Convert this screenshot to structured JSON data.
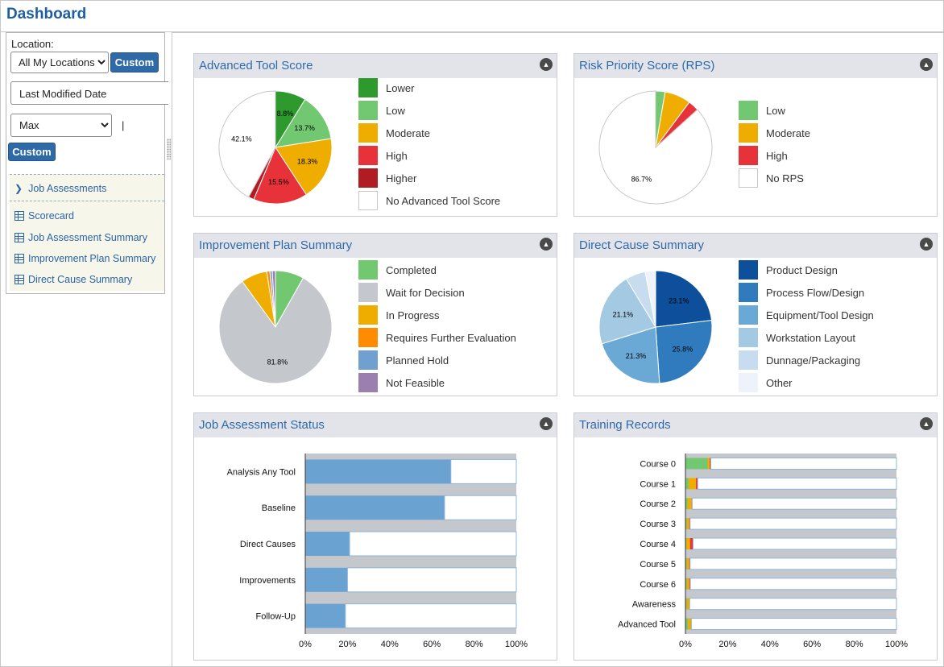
{
  "page": {
    "title": "Dashboard"
  },
  "sidebar": {
    "location_label": "Location:",
    "location_value": "All My Locations",
    "custom_label": "Custom",
    "date_field": "Last Modified Date",
    "range_value": "Max",
    "separator": "|",
    "nav": [
      {
        "label": "Job Assessments",
        "icon": "chevron-right-icon"
      },
      {
        "label": "Scorecard",
        "icon": "grid-icon"
      },
      {
        "label": "Job Assessment Summary",
        "icon": "grid-icon"
      },
      {
        "label": "Improvement Plan Summary",
        "icon": "grid-icon"
      },
      {
        "label": "Direct Cause Summary",
        "icon": "grid-icon"
      }
    ]
  },
  "panels": {
    "advanced_tool_score": {
      "title": "Advanced Tool Score"
    },
    "risk_priority_score": {
      "title": "Risk Priority Score (RPS)"
    },
    "improvement_plan_summary": {
      "title": "Improvement Plan Summary"
    },
    "direct_cause_summary": {
      "title": "Direct Cause Summary"
    },
    "job_assessment_status": {
      "title": "Job Assessment Status"
    },
    "training_records": {
      "title": "Training Records"
    }
  },
  "chart_data": [
    {
      "id": "advanced_tool_score",
      "type": "pie",
      "slices": [
        {
          "name": "Lower",
          "value": 8.8,
          "label": "8.8%",
          "color": "#2e9a2e"
        },
        {
          "name": "Low",
          "value": 13.7,
          "label": "13.7%",
          "color": "#72c771"
        },
        {
          "name": "Moderate",
          "value": 18.3,
          "label": "18.3%",
          "color": "#efad00"
        },
        {
          "name": "High",
          "value": 15.5,
          "label": "15.5%",
          "color": "#e8323a"
        },
        {
          "name": "Higher",
          "value": 1.6,
          "label": "",
          "color": "#b01c22"
        },
        {
          "name": "No Advanced Tool Score",
          "value": 42.1,
          "label": "42.1%",
          "color": "#ffffff"
        }
      ]
    },
    {
      "id": "risk_priority_score",
      "type": "pie",
      "slices": [
        {
          "name": "Low",
          "value": 2.7,
          "label": "",
          "color": "#72c771"
        },
        {
          "name": "Moderate",
          "value": 7.5,
          "label": "",
          "color": "#efad00"
        },
        {
          "name": "High",
          "value": 3.1,
          "label": "",
          "color": "#e8323a"
        },
        {
          "name": "No RPS",
          "value": 86.7,
          "label": "86.7%",
          "color": "#ffffff"
        }
      ]
    },
    {
      "id": "improvement_plan_summary",
      "type": "pie",
      "slices": [
        {
          "name": "Completed",
          "value": 8.2,
          "label": "",
          "color": "#72c771"
        },
        {
          "name": "Wait for Decision",
          "value": 81.8,
          "label": "81.8%",
          "color": "#c4c8cc"
        },
        {
          "name": "In Progress",
          "value": 7.5,
          "label": "",
          "color": "#efad00"
        },
        {
          "name": "Requires Further Evaluation",
          "value": 0.9,
          "label": "",
          "color": "#ff8c00"
        },
        {
          "name": "Planned Hold",
          "value": 0.7,
          "label": "",
          "color": "#6fa0cf"
        },
        {
          "name": "Not Feasible",
          "value": 0.9,
          "label": "",
          "color": "#9a7fb0"
        }
      ]
    },
    {
      "id": "direct_cause_summary",
      "type": "pie",
      "slices": [
        {
          "name": "Product Design",
          "value": 23.1,
          "label": "23.1%",
          "color": "#0d4f9a"
        },
        {
          "name": "Process Flow/Design",
          "value": 25.8,
          "label": "25.8%",
          "color": "#2f7bbd"
        },
        {
          "name": "Equipment/Tool Design",
          "value": 21.3,
          "label": "21.3%",
          "color": "#6aa9d5"
        },
        {
          "name": "Workstation Layout",
          "value": 21.1,
          "label": "21.1%",
          "color": "#a4c9e3"
        },
        {
          "name": "Dunnage/Packaging",
          "value": 5.7,
          "label": "",
          "color": "#c8dcef"
        },
        {
          "name": "Other",
          "value": 3.0,
          "label": "",
          "color": "#eef3fb"
        }
      ]
    },
    {
      "id": "job_assessment_status",
      "type": "bar",
      "orientation": "horizontal",
      "stacked": true,
      "categories": [
        "Analysis Any Tool",
        "Baseline",
        "Direct Causes",
        "Improvements",
        "Follow-Up"
      ],
      "series": [
        {
          "values": [
            69,
            66,
            21,
            20,
            19
          ],
          "color": "#6aa3d2"
        },
        {
          "values": [
            31,
            34,
            79,
            80,
            81
          ],
          "color": "#ffffff"
        }
      ],
      "xticks": [
        "0%",
        "20%",
        "40%",
        "60%",
        "80%",
        "100%"
      ],
      "xlim": [
        0,
        100
      ]
    },
    {
      "id": "training_records",
      "type": "bar",
      "orientation": "horizontal",
      "stacked": true,
      "categories": [
        "Course 0",
        "Course 1",
        "Course 2",
        "Course 3",
        "Course 4",
        "Course 5",
        "Course 6",
        "Awareness",
        "Advanced Tool"
      ],
      "series": [
        {
          "values": [
            10.5,
            1.5,
            1.0,
            0.6,
            0.4,
            0.6,
            0.6,
            0.6,
            1.2
          ],
          "color": "#72c771"
        },
        {
          "values": [
            1.0,
            3.5,
            2.0,
            1.2,
            1.8,
            1.2,
            1.2,
            1.2,
            1.4
          ],
          "color": "#efad00"
        },
        {
          "values": [
            0.5,
            0.8,
            0.2,
            0.4,
            1.4,
            0.4,
            0.5,
            0.2,
            0.2
          ],
          "color": "#e8323a"
        },
        {
          "values": [
            88.0,
            94.2,
            96.8,
            97.8,
            96.4,
            97.8,
            97.7,
            98.0,
            97.2
          ],
          "color": "#ffffff"
        }
      ],
      "xticks": [
        "0%",
        "20%",
        "40%",
        "60%",
        "80%",
        "100%"
      ],
      "xlim": [
        0,
        100
      ]
    }
  ]
}
